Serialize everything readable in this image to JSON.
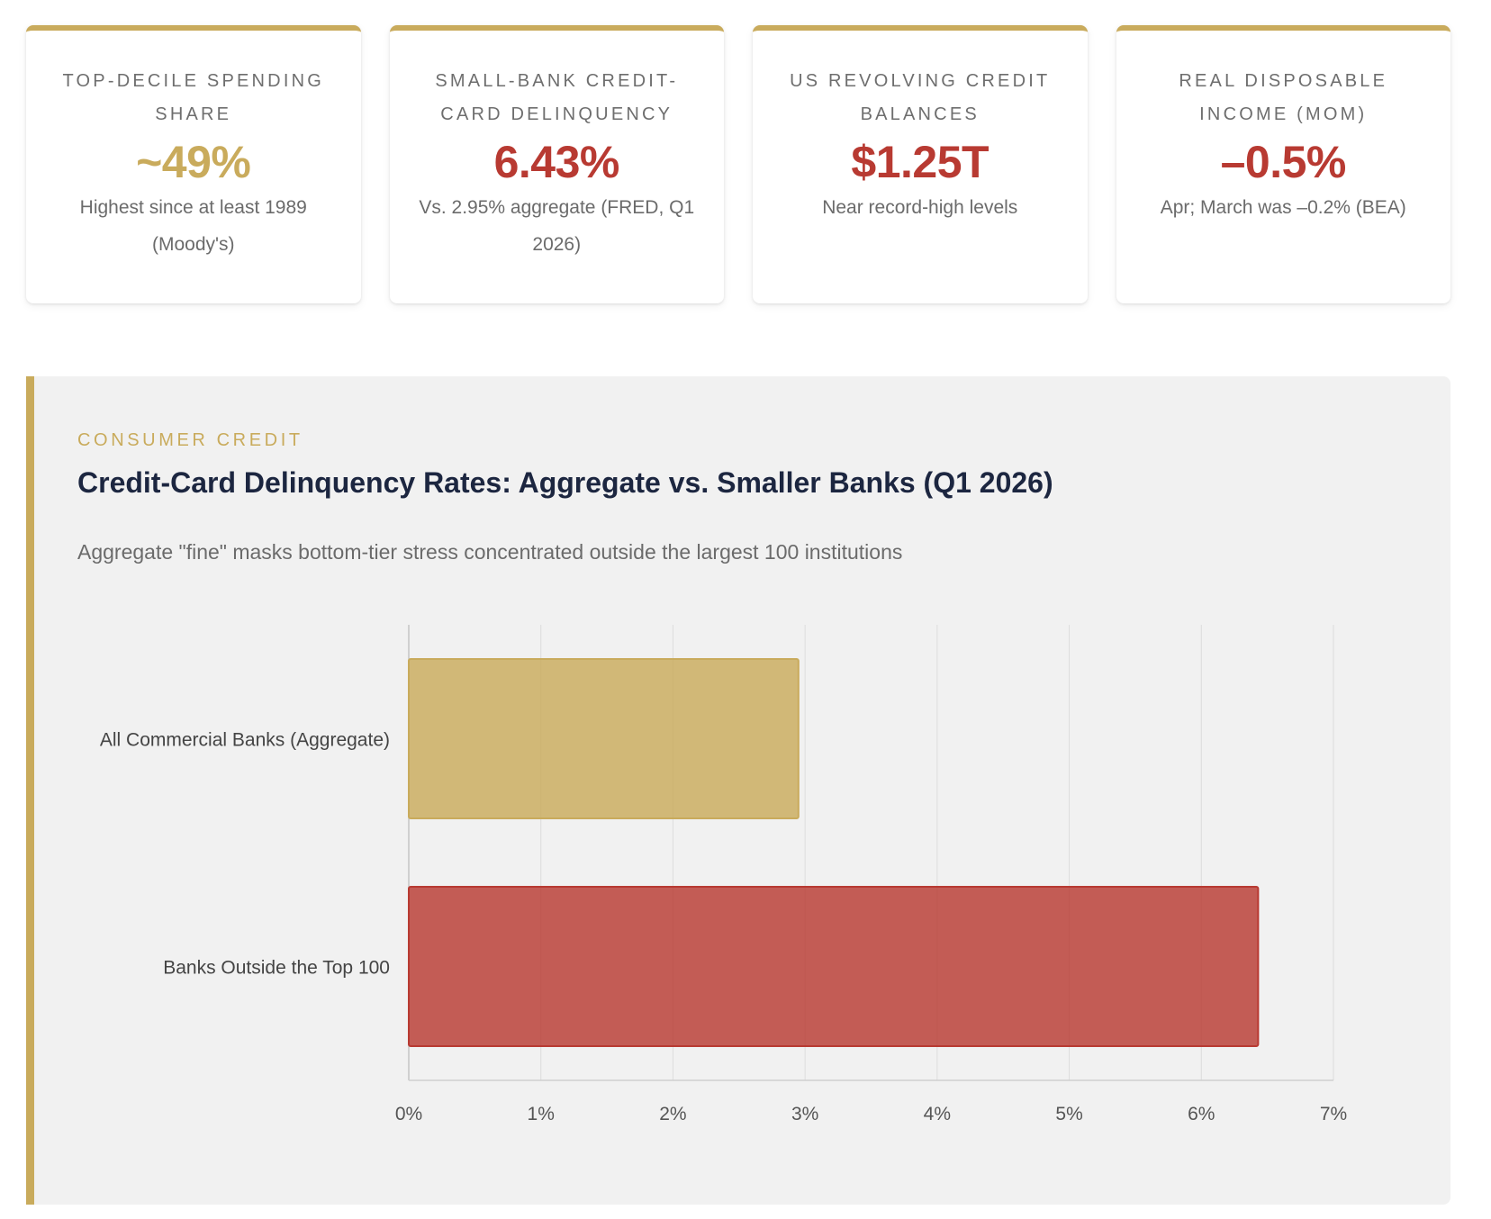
{
  "stats": [
    {
      "label": "TOP-DECILE SPENDING SHARE",
      "value": "~49%",
      "note": "Highest since at least 1989 (Moody's)",
      "color": "#c9ab5c"
    },
    {
      "label": "SMALL-BANK CREDIT-CARD DELINQUENCY",
      "value": "6.43%",
      "note": "Vs. 2.95% aggregate (FRED, Q1 2026)",
      "color": "#b83a32"
    },
    {
      "label": "US REVOLVING CREDIT BALANCES",
      "value": "$1.25T",
      "note": "Near record-high levels",
      "color": "#b83a32"
    },
    {
      "label": "REAL DISPOSABLE INCOME (MOM)",
      "value": "–0.5%",
      "note": "Apr; March was –0.2% (BEA)",
      "color": "#b83a32"
    }
  ],
  "panel": {
    "eyebrow": "CONSUMER CREDIT",
    "title": "Credit-Card Delinquency Rates: Aggregate vs. Smaller Banks (Q1 2026)",
    "subtitle": "Aggregate \"fine\" masks bottom-tier stress concentrated outside the largest 100 institutions"
  },
  "chart_data": {
    "type": "bar",
    "orientation": "horizontal",
    "categories": [
      "All Commercial Banks (Aggregate)",
      "Banks Outside the Top 100"
    ],
    "values": [
      2.95,
      6.43
    ],
    "colors": [
      "#c9ab5c",
      "#b83a32"
    ],
    "xlim": [
      0,
      7
    ],
    "xticks": [
      "0%",
      "1%",
      "2%",
      "3%",
      "4%",
      "5%",
      "6%",
      "7%"
    ],
    "grid": true
  }
}
